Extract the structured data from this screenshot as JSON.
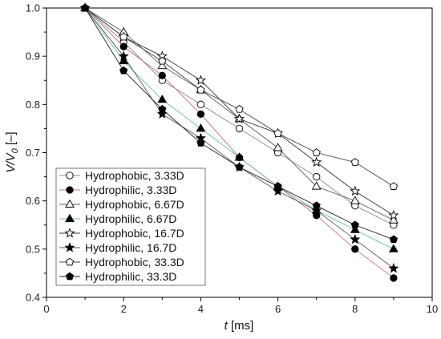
{
  "chart_data": {
    "type": "line",
    "xlabel_var": "t",
    "xlabel_unit": " [ms]",
    "ylabel_main": "V/V",
    "ylabel_sub": "0",
    "ylabel_unit": " [–]",
    "xlim": [
      0,
      10
    ],
    "ylim": [
      0.4,
      1.0
    ],
    "xticks": [
      "0",
      "2",
      "4",
      "6",
      "8",
      "10"
    ],
    "yticks": [
      "0.4",
      "0.5",
      "0.6",
      "0.7",
      "0.8",
      "0.9",
      "1.0"
    ],
    "xtick_values": [
      0,
      2,
      4,
      6,
      8,
      10
    ],
    "ytick_values": [
      0.4,
      0.5,
      0.6,
      0.7,
      0.8,
      0.9,
      1.0
    ],
    "grid": false,
    "legend_position": "lower-left",
    "x": [
      1,
      2,
      3,
      4,
      5,
      6,
      7,
      8,
      9
    ],
    "series": [
      {
        "name": "Hydrophobic, 3.33D",
        "marker": "circle",
        "filled": false,
        "line_color": "#8a8a8a",
        "values": [
          1.0,
          0.93,
          0.85,
          0.8,
          0.75,
          0.7,
          0.65,
          0.59,
          0.55
        ]
      },
      {
        "name": "Hydrophilic, 3.33D",
        "marker": "circle",
        "filled": true,
        "line_color": "#c07070",
        "values": [
          1.0,
          0.92,
          0.86,
          0.78,
          0.69,
          0.63,
          0.57,
          0.5,
          0.44
        ]
      },
      {
        "name": "Hydrophobic, 6.67D",
        "marker": "triangle",
        "filled": false,
        "line_color": "#5a5a5a",
        "values": [
          1.0,
          0.95,
          0.88,
          0.83,
          0.77,
          0.71,
          0.63,
          0.6,
          0.56
        ]
      },
      {
        "name": "Hydrophilic, 6.67D",
        "marker": "triangle",
        "filled": true,
        "line_color": "#6fbf9a",
        "values": [
          1.0,
          0.89,
          0.81,
          0.75,
          0.69,
          0.63,
          0.58,
          0.54,
          0.5
        ]
      },
      {
        "name": "Hydrophobic, 16.7D",
        "marker": "star",
        "filled": false,
        "line_color": "#333333",
        "values": [
          1.0,
          0.94,
          0.9,
          0.85,
          0.77,
          0.74,
          0.68,
          0.62,
          0.57
        ]
      },
      {
        "name": "Hydrophilic, 16.7D",
        "marker": "star",
        "filled": true,
        "line_color": "#555555",
        "values": [
          1.0,
          0.9,
          0.78,
          0.73,
          0.67,
          0.62,
          0.58,
          0.52,
          0.46
        ]
      },
      {
        "name": "Hydrophobic, 33.3D",
        "marker": "pentagon",
        "filled": false,
        "line_color": "#444444",
        "values": [
          1.0,
          0.94,
          0.89,
          0.83,
          0.79,
          0.74,
          0.7,
          0.68,
          0.63
        ]
      },
      {
        "name": "Hydrophilic, 33.3D",
        "marker": "pentagon",
        "filled": true,
        "line_color": "#222222",
        "values": [
          1.0,
          0.87,
          0.79,
          0.72,
          0.67,
          0.63,
          0.59,
          0.55,
          0.52
        ]
      }
    ]
  }
}
